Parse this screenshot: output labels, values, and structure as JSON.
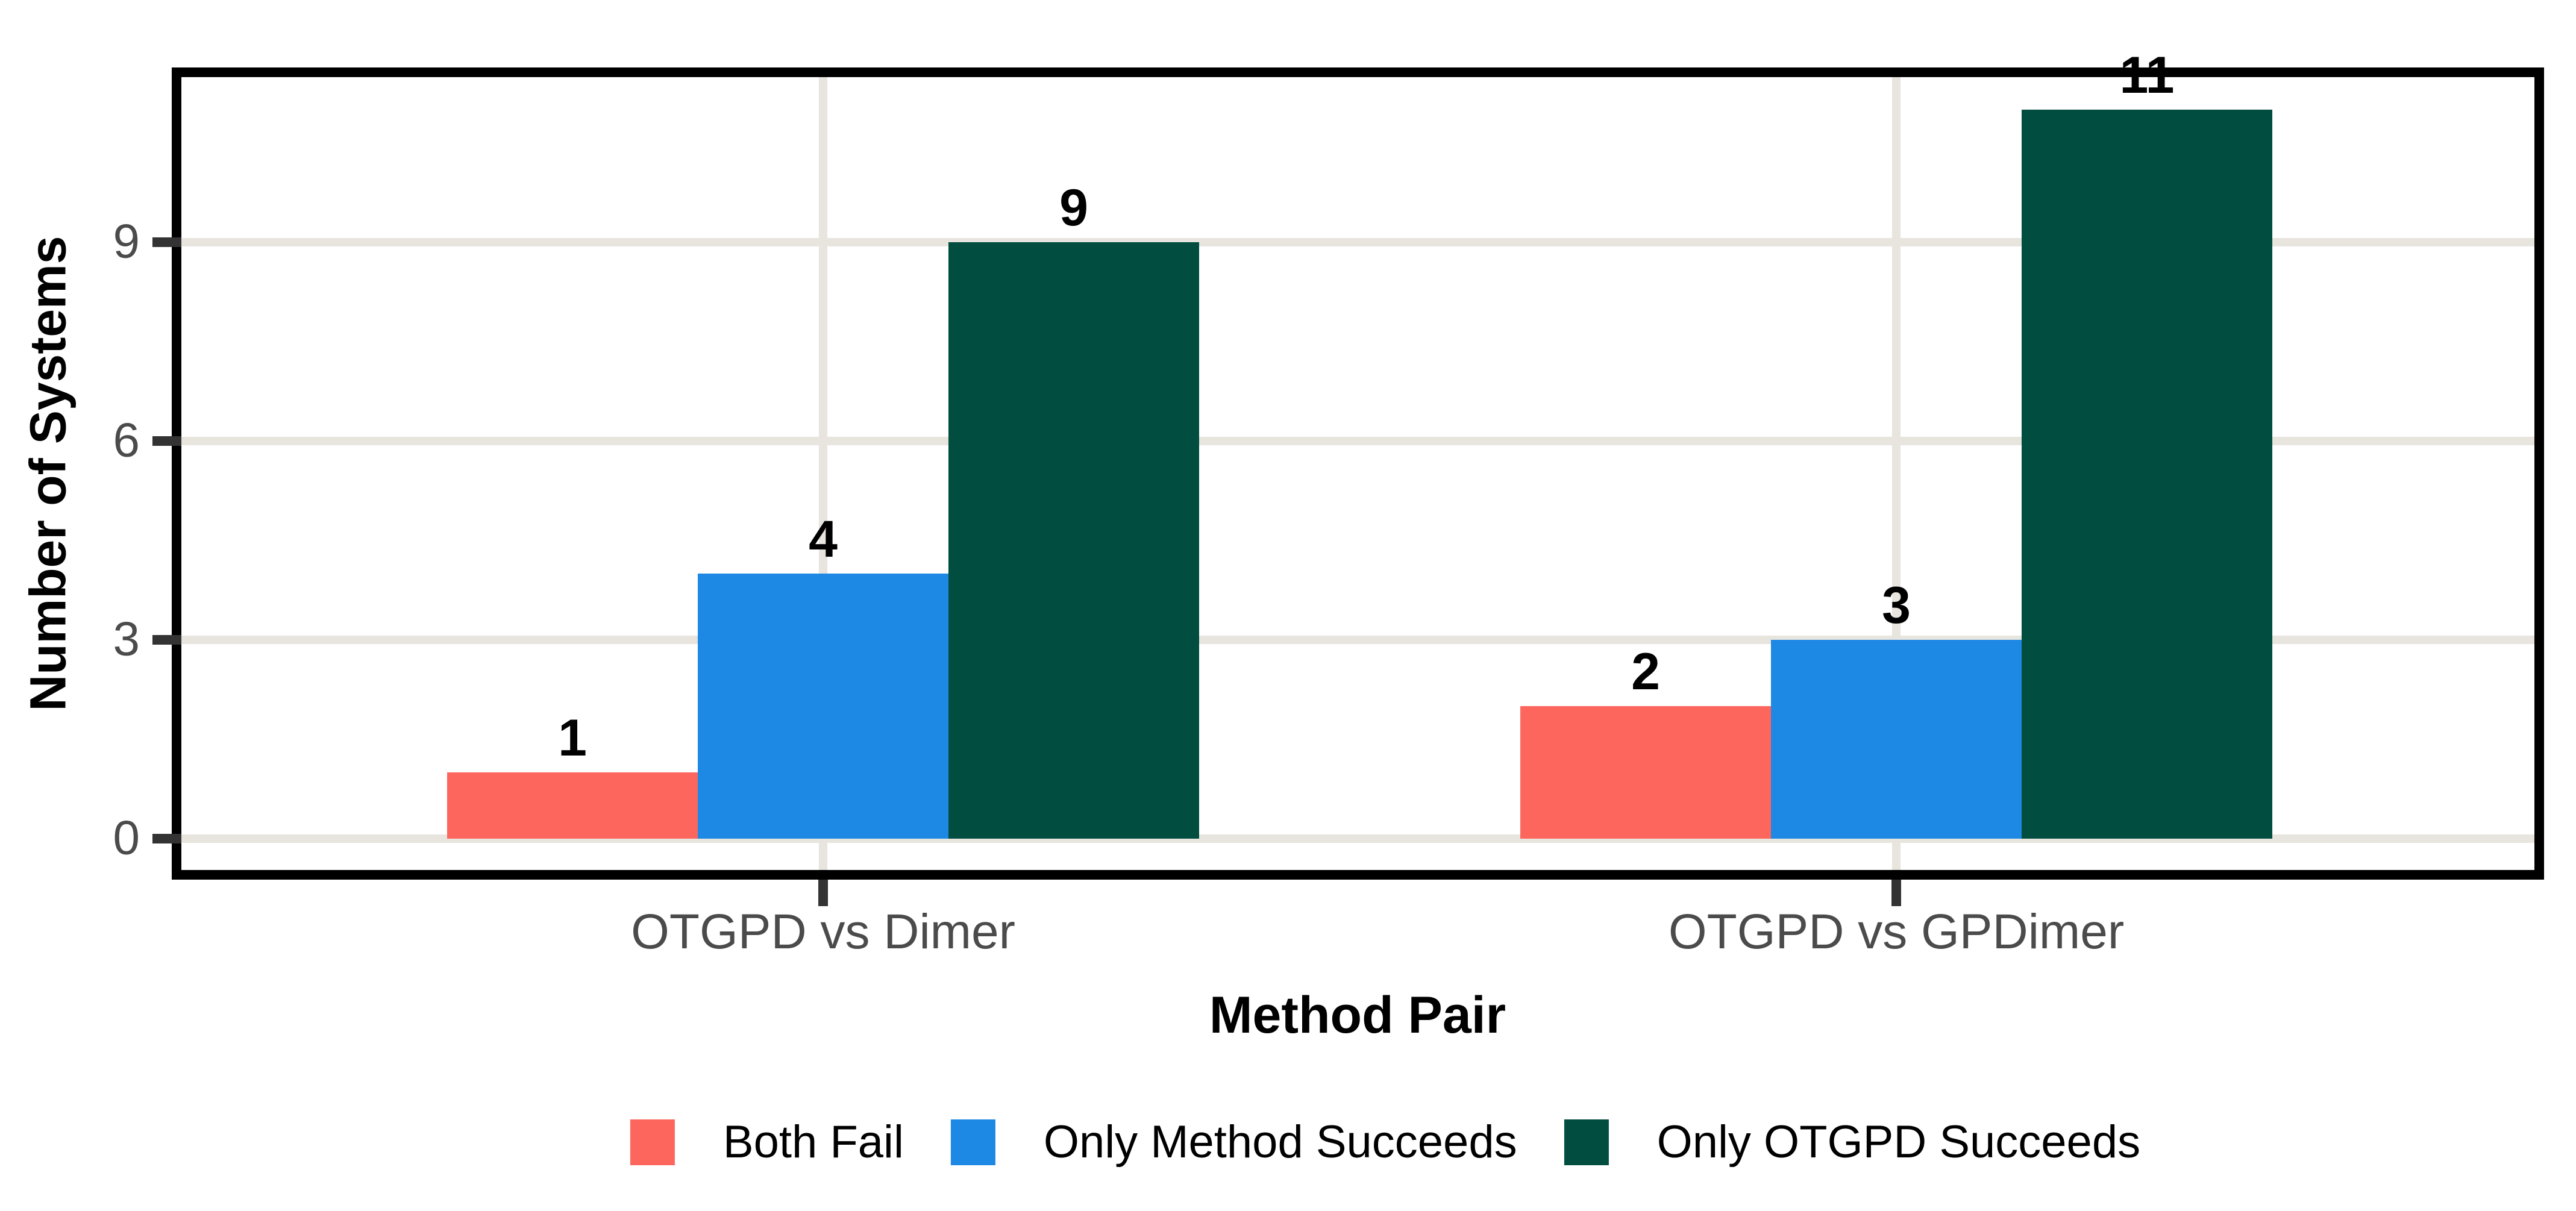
{
  "chart_data": {
    "type": "bar",
    "categories": [
      "OTGPD vs Dimer",
      "OTGPD vs GPDimer"
    ],
    "series": [
      {
        "name": "Both Fail",
        "color": "#FC665C",
        "values": [
          1,
          2
        ]
      },
      {
        "name": "Only Method Succeeds",
        "color": "#1E88E5",
        "values": [
          4,
          3
        ]
      },
      {
        "name": "Only OTGPD Succeeds",
        "color": "#014D40",
        "values": [
          9,
          11
        ]
      }
    ],
    "xlabel": "Method Pair",
    "ylabel": "Number of Systems",
    "yticks": [
      0,
      3,
      6,
      9
    ],
    "ylim": [
      0,
      11.6
    ],
    "grid": true,
    "legend_position": "bottom",
    "value_labels_shown": true
  },
  "styles": {
    "background": "#FFFFFF",
    "grid_color": "#E8E4DE",
    "panel_border_color": "#000000",
    "tick_color": "#333333",
    "tick_label_color": "#4B4B4B",
    "text_color": "#000000"
  }
}
